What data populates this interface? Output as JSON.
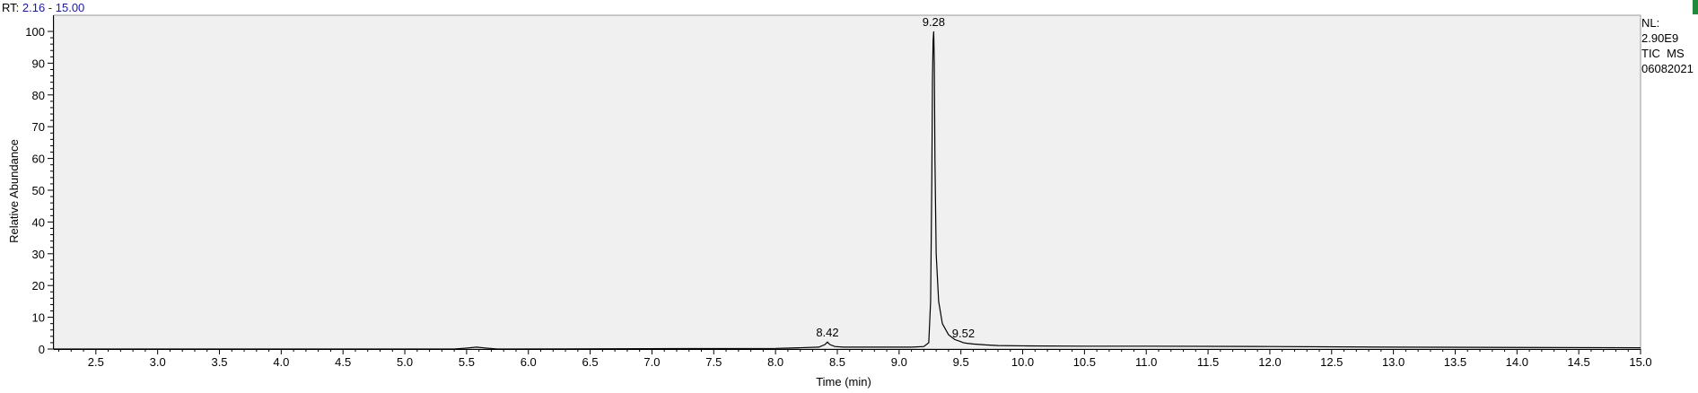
{
  "header": {
    "rt_label": "RT:",
    "rt_range": "2.16 - 15.00"
  },
  "info": {
    "nl_label": "NL:",
    "nl_value": "2.90E9",
    "scan_filter": "TIC  MS",
    "file_name": "06082021"
  },
  "colors": {
    "plot_background": "#f0f0f0",
    "trace": "#000000",
    "rt_range_text": "#1a1aa6",
    "corner_mark": "#1f8a3a"
  },
  "chart_data": {
    "type": "line",
    "title": "",
    "xlabel": "Time (min)",
    "ylabel": "Relative Abundance",
    "xlim": [
      2.16,
      15.0
    ],
    "ylim": [
      0,
      100
    ],
    "x_ticks": [
      "2.5",
      "3.0",
      "3.5",
      "4.0",
      "4.5",
      "5.0",
      "5.5",
      "6.0",
      "6.5",
      "7.0",
      "7.5",
      "8.0",
      "8.5",
      "9.0",
      "9.5",
      "10.0",
      "10.5",
      "11.0",
      "11.5",
      "12.0",
      "12.5",
      "13.0",
      "13.5",
      "14.0",
      "14.5",
      "15.0"
    ],
    "y_ticks": [
      "0",
      "10",
      "20",
      "30",
      "40",
      "50",
      "60",
      "70",
      "80",
      "90",
      "100"
    ],
    "grid": false,
    "legend": "none",
    "series": [
      {
        "x": [
          2.16,
          5.4,
          5.5,
          5.58,
          5.66,
          5.75,
          8.0,
          8.2,
          8.35,
          8.4,
          8.42,
          8.44,
          8.48,
          8.55,
          9.1,
          9.2,
          9.24,
          9.255,
          9.265,
          9.27,
          9.275,
          9.28,
          9.285,
          9.29,
          9.3,
          9.32,
          9.35,
          9.4,
          9.45,
          9.5,
          9.52,
          9.55,
          9.6,
          9.7,
          9.8,
          10.0,
          10.5,
          11.0,
          12.0,
          13.0,
          14.0,
          15.0
        ],
        "y": [
          0,
          0,
          0.3,
          0.6,
          0.3,
          0,
          0.2,
          0.4,
          0.6,
          1.4,
          2.2,
          1.4,
          0.8,
          0.6,
          0.6,
          0.8,
          2.0,
          15,
          55,
          85,
          97,
          100,
          90,
          60,
          30,
          15,
          8,
          4.5,
          3.0,
          2.3,
          2.0,
          1.8,
          1.6,
          1.3,
          1.1,
          1.0,
          0.9,
          0.9,
          0.8,
          0.6,
          0.5,
          0.4
        ]
      }
    ],
    "peak_labels": [
      {
        "x": 8.42,
        "y": 2.2,
        "label": "8.42"
      },
      {
        "x": 9.28,
        "y": 100,
        "label": "9.28"
      },
      {
        "x": 9.52,
        "y": 2.0,
        "label": "9.52"
      }
    ]
  }
}
